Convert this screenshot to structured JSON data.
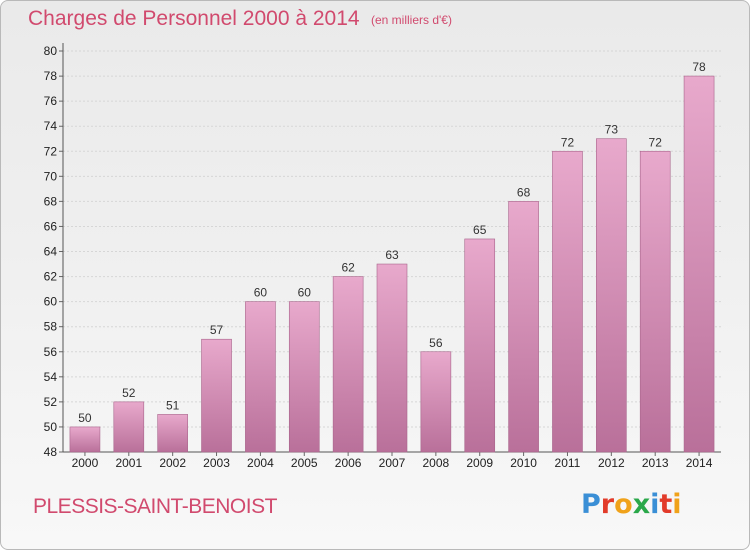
{
  "header": {
    "title": "Charges de Personnel 2000 à 2014",
    "subtitle": "(en milliers d'€)"
  },
  "footer": {
    "commune": "PLESSIS-SAINT-BENOIST",
    "logo_text": "Proxiti",
    "logo_colors": [
      "#3a8fd6",
      "#e23b2a",
      "#f0a21a",
      "#2aa84a",
      "#3a8fd6",
      "#e23b2a",
      "#f0a21a"
    ]
  },
  "colors": {
    "bar_top": "#e8a9cc",
    "bar_bottom": "#b9709a",
    "bar_stroke": "#a8648b",
    "accent": "#d14a6e"
  },
  "chart_data": {
    "type": "bar",
    "title": "Charges de Personnel 2000 à 2014",
    "subtitle": "(en milliers d'€)",
    "categories": [
      "2000",
      "2001",
      "2002",
      "2003",
      "2004",
      "2005",
      "2006",
      "2007",
      "2008",
      "2009",
      "2010",
      "2011",
      "2012",
      "2013",
      "2014"
    ],
    "values": [
      50,
      52,
      51,
      57,
      60,
      60,
      62,
      63,
      56,
      65,
      68,
      72,
      73,
      72,
      78
    ],
    "ylim": [
      48,
      80
    ],
    "yticks": [
      48,
      50,
      52,
      54,
      56,
      58,
      60,
      62,
      64,
      66,
      68,
      70,
      72,
      74,
      76,
      78,
      80
    ],
    "xlabel": "",
    "ylabel": "",
    "grid": true,
    "legend": "none"
  }
}
